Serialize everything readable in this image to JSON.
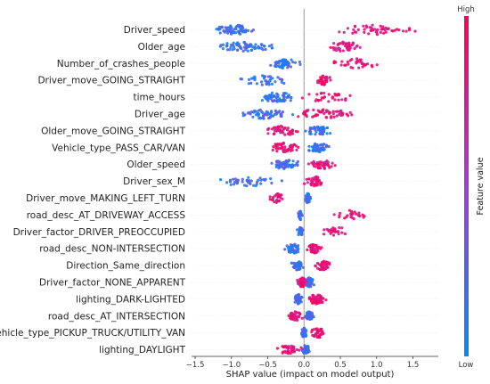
{
  "chart_data": {
    "type": "scatter",
    "subtype": "shap-beeswarm",
    "xlabel": "SHAP value (impact on model output)",
    "xlim": [
      -1.55,
      1.85
    ],
    "xticks": [
      -1.5,
      -1.0,
      -0.5,
      0.0,
      0.5,
      1.0,
      1.5
    ],
    "xtick_labels": [
      "−1.5",
      "−1.0",
      "−0.5",
      "0.0",
      "0.5",
      "1.0",
      "1.5"
    ],
    "colorbar": {
      "title": "Feature value",
      "high_label": "High",
      "low_label": "Low",
      "high_color": "#ff0052",
      "low_color": "#008bfb"
    },
    "features": [
      {
        "name": "Driver_speed",
        "low_range": [
          -1.35,
          -0.55
        ],
        "high_range": [
          0.2,
          1.7
        ],
        "n": 120
      },
      {
        "name": "Older_age",
        "low_range": [
          -1.3,
          -0.25
        ],
        "high_range": [
          0.15,
          0.95
        ],
        "n": 110
      },
      {
        "name": "Number_of_crashes_people",
        "low_range": [
          -0.55,
          0.0
        ],
        "high_range": [
          0.3,
          1.15
        ],
        "n": 90
      },
      {
        "name": "Driver_move_GOING_STRAIGHT",
        "low_range": [
          -1.0,
          -0.1
        ],
        "high_range": [
          0.15,
          0.4
        ],
        "n": 70
      },
      {
        "name": "time_hours",
        "low_range": [
          -0.75,
          0.0
        ],
        "high_range": [
          -0.2,
          0.8
        ],
        "n": 90
      },
      {
        "name": "Driver_age",
        "low_range": [
          -0.95,
          -0.1
        ],
        "high_range": [
          -0.3,
          0.8
        ],
        "n": 110
      },
      {
        "name": "Older_move_GOING_STRAIGHT",
        "low_range": [
          0.0,
          0.4
        ],
        "high_range": [
          -0.6,
          0.0
        ],
        "n": 100
      },
      {
        "name": "Vehicle_type_PASS_CAR/VAN",
        "low_range": [
          0.0,
          0.4
        ],
        "high_range": [
          -0.55,
          0.0
        ],
        "n": 100
      },
      {
        "name": "Older_speed",
        "low_range": [
          -0.5,
          0.0
        ],
        "high_range": [
          0.0,
          0.5
        ],
        "n": 100
      },
      {
        "name": "Driver_sex_M",
        "low_range": [
          -1.3,
          -0.2
        ],
        "high_range": [
          -0.05,
          0.35
        ],
        "n": 80
      },
      {
        "name": "Driver_move_MAKING_LEFT_TURN",
        "low_range": [
          0.0,
          0.1
        ],
        "high_range": [
          -0.5,
          -0.25
        ],
        "n": 55
      },
      {
        "name": "road_desc_AT_DRIVEWAY_ACCESS",
        "low_range": [
          -0.1,
          0.0
        ],
        "high_range": [
          0.3,
          0.95
        ],
        "n": 50
      },
      {
        "name": "Driver_factor_DRIVER_PREOCCUPIED",
        "low_range": [
          -0.1,
          0.0
        ],
        "high_range": [
          0.2,
          0.7
        ],
        "n": 50
      },
      {
        "name": "road_desc_NON-INTERSECTION",
        "low_range": [
          -0.3,
          0.0
        ],
        "high_range": [
          0.0,
          0.3
        ],
        "n": 90
      },
      {
        "name": "Direction_Same_direction",
        "low_range": [
          -0.2,
          0.0
        ],
        "high_range": [
          0.1,
          0.4
        ],
        "n": 80
      },
      {
        "name": "Driver_factor_NONE_APPARENT",
        "low_range": [
          0.0,
          0.15
        ],
        "high_range": [
          -0.1,
          0.05
        ],
        "n": 90
      },
      {
        "name": "lighting_DARK-LIGHTED",
        "low_range": [
          -0.15,
          0.0
        ],
        "high_range": [
          0.0,
          0.35
        ],
        "n": 90
      },
      {
        "name": "road_desc_AT_INTERSECTION",
        "low_range": [
          0.0,
          0.15
        ],
        "high_range": [
          -0.25,
          0.0
        ],
        "n": 90
      },
      {
        "name": "Vehicle_type_PICKUP_TRUCK/UTILITY_VAN",
        "low_range": [
          -0.05,
          0.05
        ],
        "high_range": [
          0.05,
          0.35
        ],
        "n": 70
      },
      {
        "name": "lighting_DAYLIGHT",
        "low_range": [
          -0.05,
          0.1
        ],
        "high_range": [
          -0.4,
          0.0
        ],
        "n": 80
      }
    ]
  }
}
